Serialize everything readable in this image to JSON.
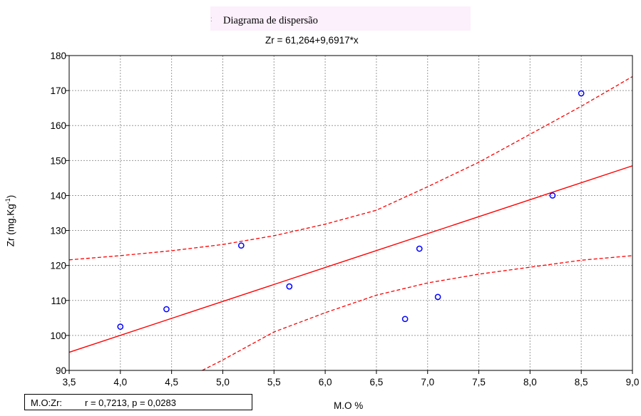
{
  "chart_data": {
    "type": "scatter",
    "title": "Diagrama de dispersão",
    "subtitle": "Zr = 61,264+9,6917*x",
    "xlabel": "M.O %",
    "ylabel": "Zr (mg.Kg",
    "ylabel_sup": "-1",
    "ylabel_end": ")",
    "xlim": [
      3.5,
      9.0
    ],
    "ylim": [
      90,
      180
    ],
    "xticks": [
      "3,5",
      "4,0",
      "4,5",
      "5,0",
      "5,5",
      "6,0",
      "6,5",
      "7,0",
      "7,5",
      "8,0",
      "8,5",
      "9,0"
    ],
    "yticks": [
      "90",
      "100",
      "110",
      "120",
      "130",
      "140",
      "150",
      "160",
      "170",
      "180"
    ],
    "grid": true,
    "points": [
      {
        "x": 4.0,
        "y": 102.5
      },
      {
        "x": 4.45,
        "y": 107.5
      },
      {
        "x": 5.18,
        "y": 125.7
      },
      {
        "x": 5.65,
        "y": 114.0
      },
      {
        "x": 6.78,
        "y": 104.7
      },
      {
        "x": 6.92,
        "y": 124.8
      },
      {
        "x": 7.1,
        "y": 111.0
      },
      {
        "x": 8.22,
        "y": 140.0
      },
      {
        "x": 8.5,
        "y": 169.2
      }
    ],
    "regression": {
      "intercept": 61.264,
      "slope": 9.6917
    },
    "confidence_upper": [
      {
        "x": 3.5,
        "y": 121.6
      },
      {
        "x": 4.0,
        "y": 122.8
      },
      {
        "x": 4.5,
        "y": 124.2
      },
      {
        "x": 5.0,
        "y": 126.0
      },
      {
        "x": 5.5,
        "y": 128.5
      },
      {
        "x": 6.0,
        "y": 131.8
      },
      {
        "x": 6.5,
        "y": 135.8
      },
      {
        "x": 7.0,
        "y": 142.5
      },
      {
        "x": 7.5,
        "y": 149.5
      },
      {
        "x": 8.0,
        "y": 157.5
      },
      {
        "x": 8.5,
        "y": 165.5
      },
      {
        "x": 9.0,
        "y": 174.0
      }
    ],
    "confidence_lower": [
      {
        "x": 4.8,
        "y": 90.0
      },
      {
        "x": 5.0,
        "y": 93.0
      },
      {
        "x": 5.5,
        "y": 101.0
      },
      {
        "x": 6.0,
        "y": 106.5
      },
      {
        "x": 6.5,
        "y": 111.5
      },
      {
        "x": 7.0,
        "y": 115.0
      },
      {
        "x": 7.5,
        "y": 117.5
      },
      {
        "x": 8.0,
        "y": 119.5
      },
      {
        "x": 8.5,
        "y": 121.5
      },
      {
        "x": 9.0,
        "y": 122.8
      }
    ],
    "colors": {
      "points": "#0000ff",
      "line": "#ff0000",
      "band": "#ff0000",
      "grid": "#9a9a9a"
    },
    "stat_label": "M.O:Zr:",
    "stat_value": "r = 0,7213, p = 0,0283"
  }
}
